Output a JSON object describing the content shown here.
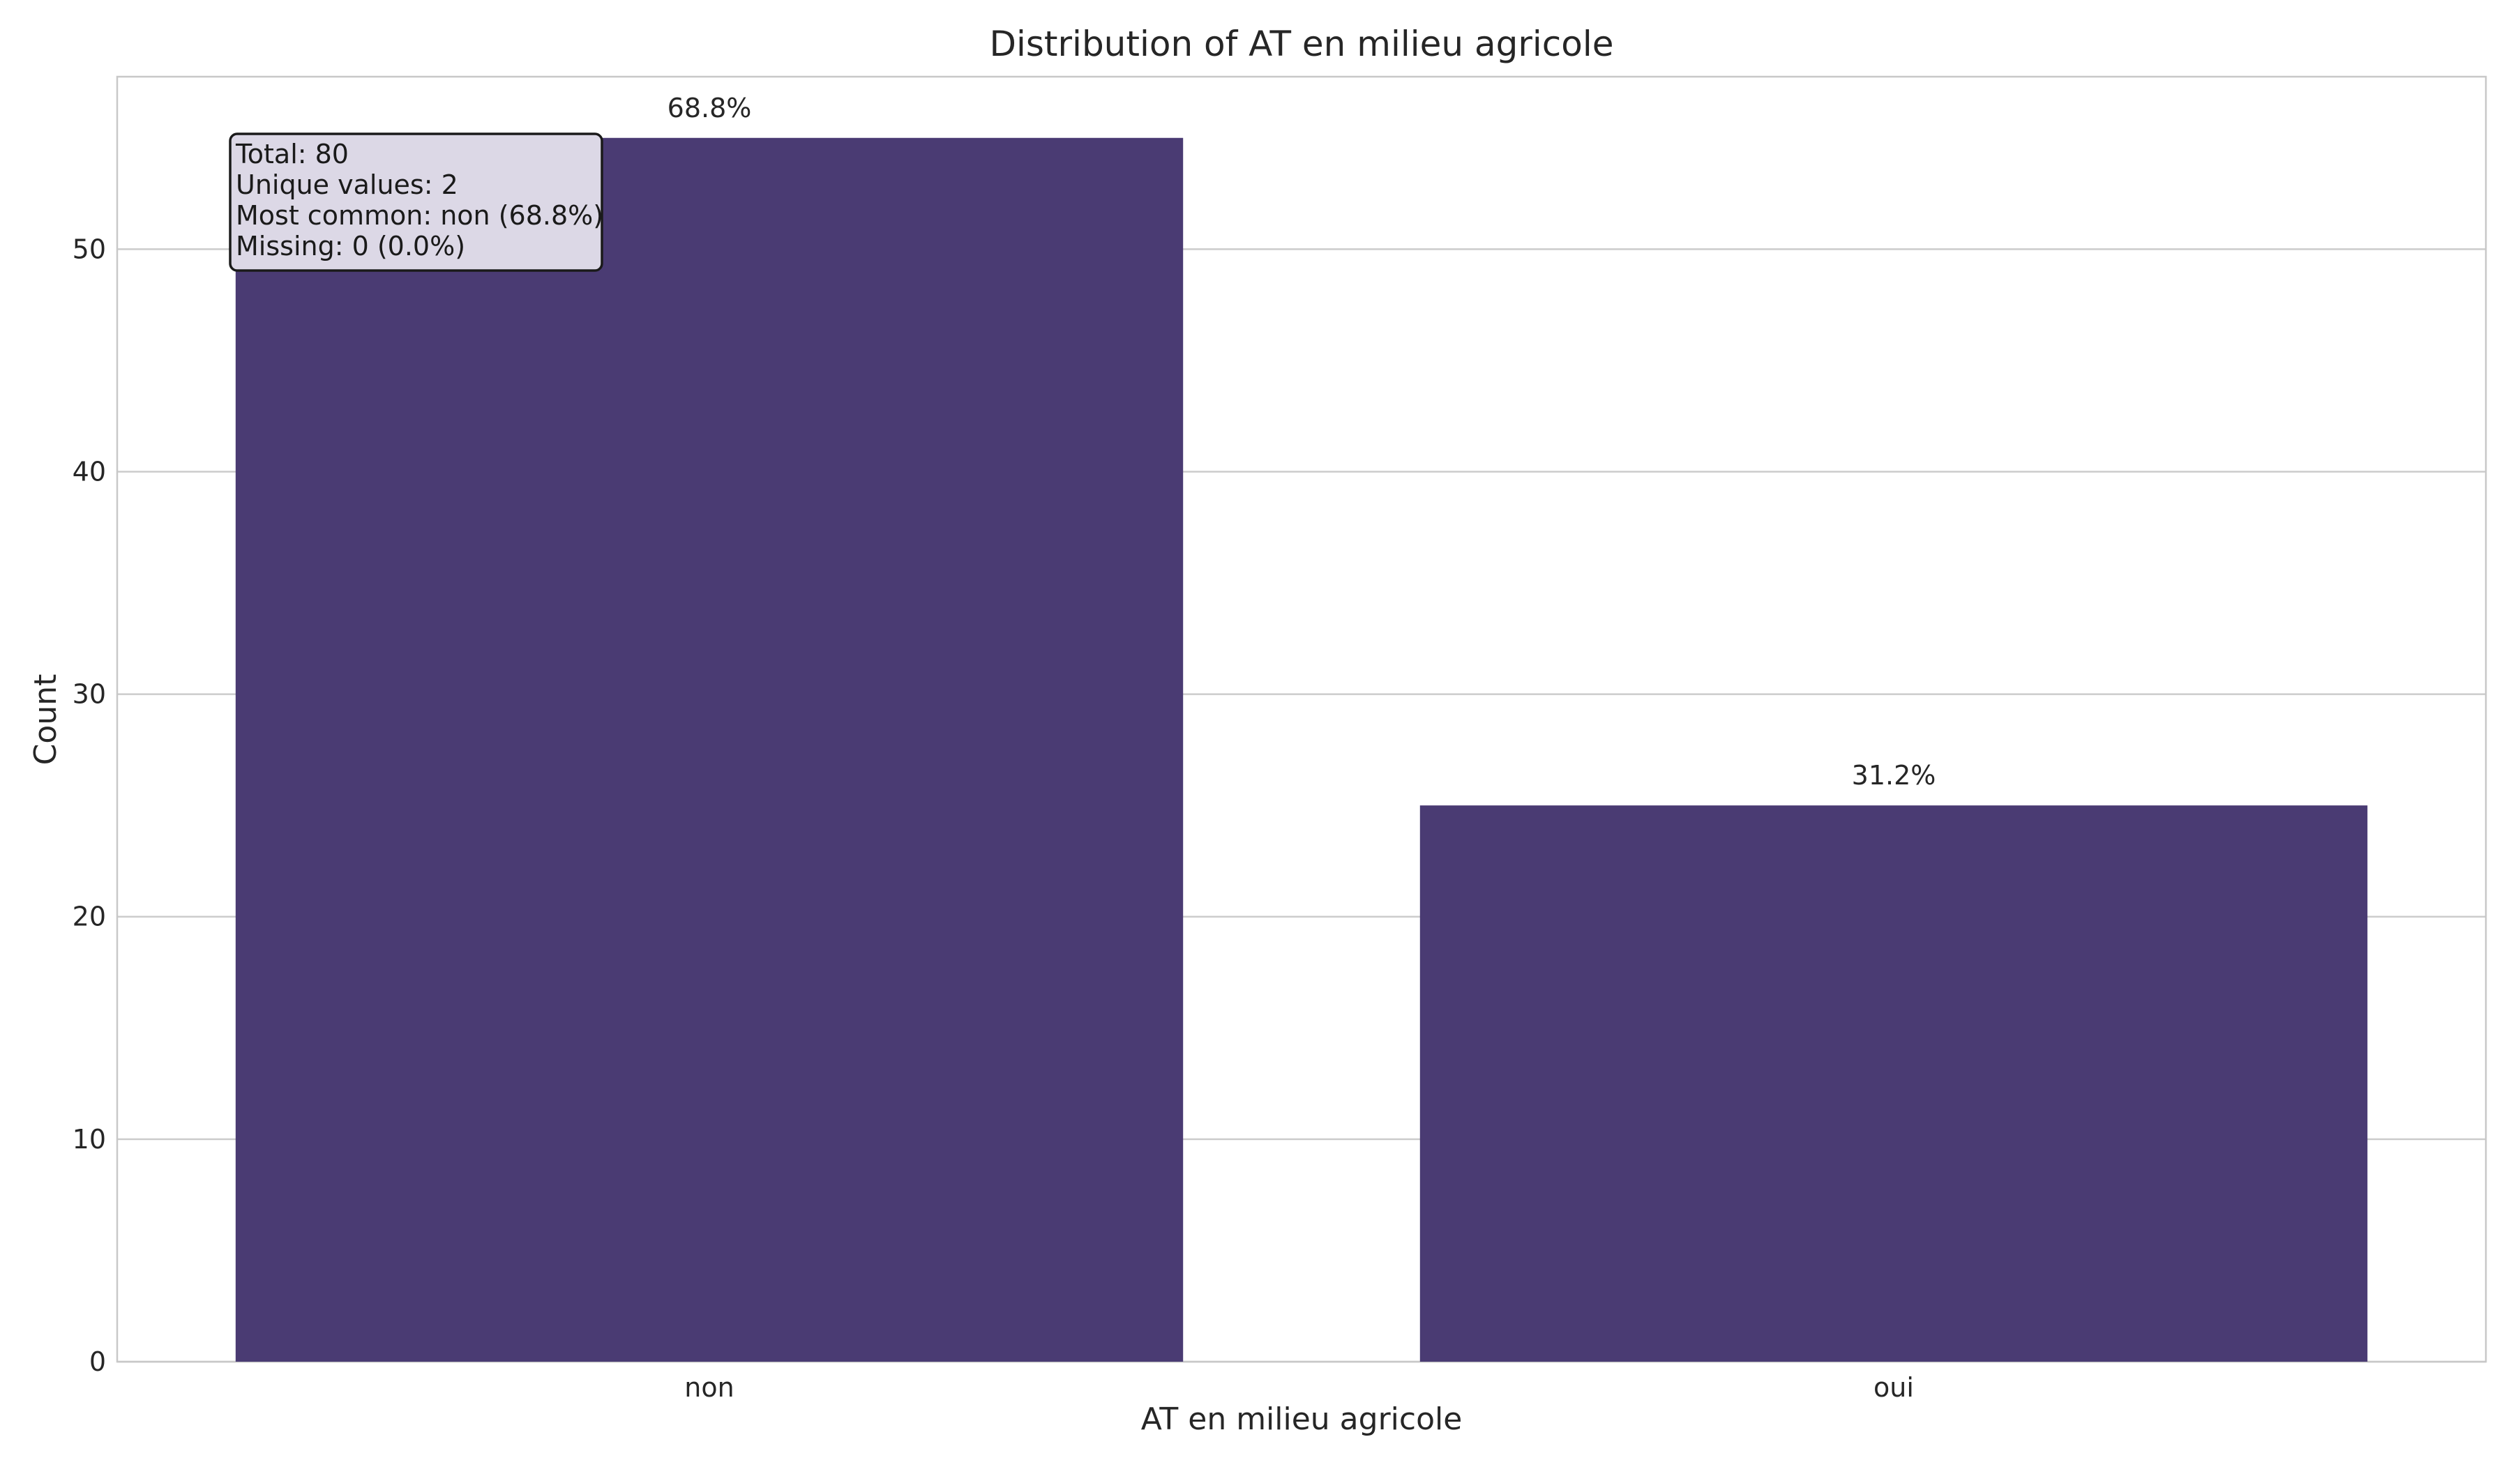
{
  "chart_data": {
    "type": "bar",
    "title": "Distribution of AT en milieu agricole",
    "xlabel": "AT en milieu agricole",
    "ylabel": "Count",
    "categories": [
      "non",
      "oui"
    ],
    "values": [
      55,
      25
    ],
    "bar_labels": [
      "68.8%",
      "31.2%"
    ],
    "ylim": [
      0,
      57.75
    ],
    "yticks": [
      0,
      10,
      20,
      30,
      40,
      50
    ],
    "grid": "horizontal",
    "bar_color": "#4a3b73",
    "stats_box": {
      "lines": [
        "Total: 80",
        "Unique values: 2",
        "Most common: non (68.8%)",
        "Missing: 0 (0.0%)"
      ]
    }
  }
}
